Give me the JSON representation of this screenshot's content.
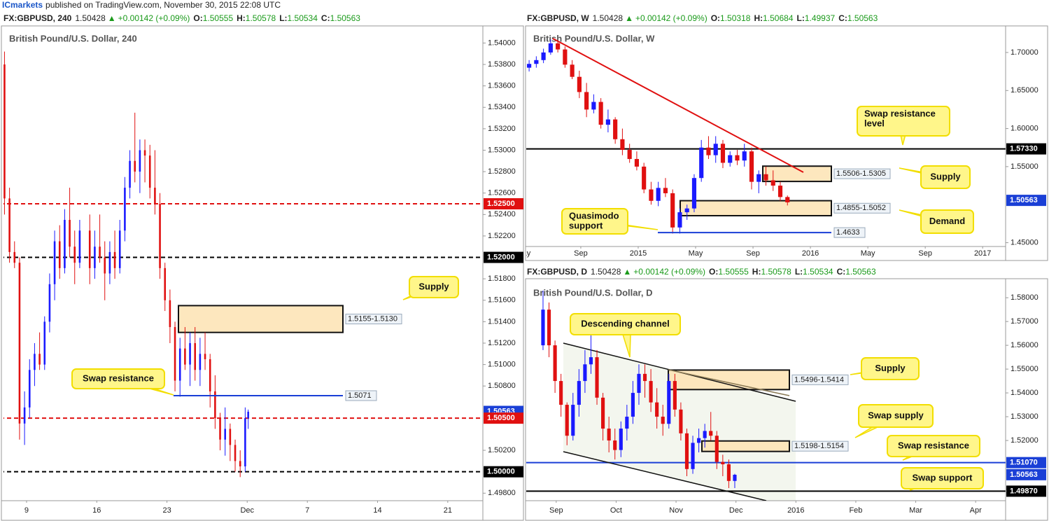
{
  "header": {
    "author": "ICmarkets",
    "text": "published on TradingView.com, November 30, 2015 22:08 UTC"
  },
  "chart_data": [
    {
      "type": "candlestick",
      "title": "British Pound/U.S. Dollar, 240",
      "quote": {
        "symbol": "FX:GBPUSD, 240",
        "last": "1.50428",
        "arrow": "▲",
        "change": "+0.00142 (+0.09%)",
        "ohlc": [
          {
            "label": "O:",
            "value": "1.50555"
          },
          {
            "label": "H:",
            "value": "1.50578"
          },
          {
            "label": "L:",
            "value": "1.50534"
          },
          {
            "label": "C:",
            "value": "1.50563"
          }
        ]
      },
      "up_color": "#1a1aff",
      "down_color": "#e01010",
      "grid": false,
      "xlim": [
        6.7,
        54.5
      ],
      "xticks": [
        9,
        16,
        23,
        {
          "value": 31,
          "label": "Dec"
        },
        {
          "value": 37,
          "label": "7"
        },
        {
          "value": 44,
          "label": "14"
        },
        {
          "value": 51,
          "label": "21"
        }
      ],
      "ylim": [
        1.4973,
        1.5414
      ],
      "yticks": [
        {
          "value": 1.54,
          "label": "1.54000"
        },
        {
          "value": 1.538,
          "label": "1.53800"
        },
        {
          "value": 1.536,
          "label": "1.53600"
        },
        {
          "value": 1.534,
          "label": "1.53400"
        },
        {
          "value": 1.532,
          "label": "1.53200"
        },
        {
          "value": 1.53,
          "label": "1.53000"
        },
        {
          "value": 1.528,
          "label": "1.52800"
        },
        {
          "value": 1.526,
          "label": "1.52600"
        },
        {
          "value": 1.524,
          "label": "1.52400"
        },
        {
          "value": 1.522,
          "label": "1.52200"
        },
        {
          "value": 1.518,
          "label": "1.51800"
        },
        {
          "value": 1.516,
          "label": "1.51600"
        },
        {
          "value": 1.514,
          "label": "1.51400"
        },
        {
          "value": 1.512,
          "label": "1.51200"
        },
        {
          "value": 1.51,
          "label": "1.51000"
        },
        {
          "value": 1.508,
          "label": "1.50800"
        },
        {
          "value": 1.502,
          "label": "1.50200"
        },
        {
          "value": 1.498,
          "label": "1.49800"
        }
      ],
      "levels": [
        {
          "value": 1.525,
          "label": "1.52500",
          "color": "#e01010",
          "line": "dashed"
        },
        {
          "value": 1.52,
          "label": "1.52000",
          "color": "#000000",
          "line": "dashed"
        },
        {
          "value": 1.50563,
          "label": "1.50563",
          "color": "#1a3fd6",
          "line": "none"
        },
        {
          "value": 1.505,
          "label": "1.50500",
          "color": "#e01010",
          "line": "dashed"
        },
        {
          "value": 1.5,
          "label": "1.50000",
          "color": "#000000",
          "line": "dashed"
        }
      ],
      "zones": [
        {
          "top": 1.5155,
          "bottom": 1.513,
          "label": "1.5155-1.5130"
        }
      ],
      "lines": [
        {
          "value": 1.5071,
          "label": "1.5071",
          "color": "#1a3fd6"
        }
      ],
      "callouts": [
        "Supply",
        "Swap resistance"
      ],
      "x": [
        6.8,
        7.3,
        7.8,
        8.3,
        8.8,
        9.3,
        9.8,
        10.3,
        10.8,
        11.3,
        11.8,
        12.3,
        12.8,
        13.3,
        13.8,
        14.3,
        15.3,
        15.8,
        16.3,
        16.8,
        17.3,
        17.8,
        18.3,
        18.8,
        19.3,
        19.8,
        20.3,
        20.8,
        21.3,
        21.8,
        22.3,
        22.8,
        23.3,
        23.8,
        24.3,
        24.8,
        25.3,
        25.8,
        26.3,
        26.8,
        27.3,
        27.8,
        28.3,
        28.8,
        29.3,
        29.8,
        30.3,
        30.8,
        31.1
      ],
      "open": [
        1.538,
        1.5255,
        1.5205,
        1.5195,
        1.5045,
        1.506,
        1.5095,
        1.511,
        1.51,
        1.514,
        1.5175,
        1.5215,
        1.519,
        1.5235,
        1.521,
        1.5195,
        1.5225,
        1.519,
        1.521,
        1.52,
        1.5185,
        1.5205,
        1.519,
        1.5225,
        1.5265,
        1.529,
        1.528,
        1.53,
        1.5295,
        1.5265,
        1.525,
        1.519,
        1.516,
        1.5135,
        1.5085,
        1.5115,
        1.51,
        1.512,
        1.5095,
        1.511,
        1.5105,
        1.5075,
        1.505,
        1.503,
        1.504,
        1.5025,
        1.501,
        1.5005,
        1.505
      ],
      "high": [
        1.5392,
        1.5265,
        1.5215,
        1.52,
        1.5075,
        1.5105,
        1.512,
        1.513,
        1.5145,
        1.5185,
        1.5225,
        1.523,
        1.5245,
        1.5265,
        1.5225,
        1.5235,
        1.524,
        1.5225,
        1.524,
        1.5215,
        1.5215,
        1.5225,
        1.5235,
        1.5275,
        1.53,
        1.5335,
        1.531,
        1.531,
        1.5305,
        1.53,
        1.526,
        1.5195,
        1.517,
        1.514,
        1.5125,
        1.5135,
        1.513,
        1.5135,
        1.5125,
        1.513,
        1.511,
        1.509,
        1.5055,
        1.506,
        1.5045,
        1.503,
        1.502,
        1.506,
        1.5058
      ],
      "low": [
        1.524,
        1.5195,
        1.519,
        1.503,
        1.5025,
        1.505,
        1.508,
        1.5095,
        1.5095,
        1.513,
        1.516,
        1.518,
        1.5185,
        1.52,
        1.5175,
        1.519,
        1.5175,
        1.518,
        1.5195,
        1.516,
        1.5175,
        1.518,
        1.5185,
        1.5215,
        1.5255,
        1.527,
        1.526,
        1.527,
        1.5255,
        1.524,
        1.518,
        1.515,
        1.512,
        1.5075,
        1.507,
        1.5095,
        1.508,
        1.5085,
        1.508,
        1.5095,
        1.506,
        1.504,
        1.502,
        1.5015,
        1.501,
        1.5,
        1.4995,
        1.5,
        1.504
      ],
      "close": [
        1.5255,
        1.5205,
        1.5195,
        1.5045,
        1.506,
        1.5095,
        1.511,
        1.51,
        1.514,
        1.5175,
        1.5215,
        1.519,
        1.5235,
        1.521,
        1.5195,
        1.5225,
        1.519,
        1.521,
        1.52,
        1.5185,
        1.5205,
        1.519,
        1.5225,
        1.5265,
        1.529,
        1.528,
        1.53,
        1.5295,
        1.5265,
        1.525,
        1.519,
        1.516,
        1.5135,
        1.5085,
        1.5115,
        1.51,
        1.512,
        1.5095,
        1.511,
        1.5105,
        1.5075,
        1.505,
        1.503,
        1.504,
        1.5025,
        1.501,
        1.5005,
        1.505,
        1.5056
      ]
    },
    {
      "type": "candlestick",
      "title": "British Pound/U.S. Dollar, W",
      "quote": {
        "symbol": "FX:GBPUSD, W",
        "last": "1.50428",
        "arrow": "▲",
        "change": "+0.00142 (+0.09%)",
        "ohlc": [
          {
            "label": "O:",
            "value": "1.50318"
          },
          {
            "label": "H:",
            "value": "1.50684"
          },
          {
            "label": "L:",
            "value": "1.49937"
          },
          {
            "label": "C:",
            "value": "1.50563"
          }
        ]
      },
      "up_color": "#1a1aff",
      "down_color": "#e01010",
      "grid": false,
      "xlim": [
        4.2,
        37.6
      ],
      "xticks": [
        {
          "value": 4,
          "label": "May"
        },
        {
          "value": 8,
          "label": "Sep"
        },
        {
          "value": 12,
          "label": "2015"
        },
        {
          "value": 16,
          "label": "May"
        },
        {
          "value": 20,
          "label": "Sep"
        },
        {
          "value": 24,
          "label": "2016"
        },
        {
          "value": 28,
          "label": "May"
        },
        {
          "value": 32,
          "label": "Sep"
        },
        {
          "value": 36,
          "label": "2017"
        }
      ],
      "ylim": [
        1.445,
        1.734
      ],
      "yticks": [
        {
          "value": 1.7,
          "label": "1.70000"
        },
        {
          "value": 1.65,
          "label": "1.65000"
        },
        {
          "value": 1.6,
          "label": "1.60000"
        },
        {
          "value": 1.55,
          "label": "1.55000"
        },
        {
          "value": 1.45,
          "label": "1.45000"
        }
      ],
      "levels": [
        {
          "value": 1.5733,
          "label": "1.57330",
          "color": "#000000",
          "line": "solid"
        },
        {
          "value": 1.50563,
          "label": "1.50563",
          "color": "#1a3fd6",
          "line": "none"
        }
      ],
      "zones": [
        {
          "top": 1.5506,
          "bottom": 1.5305,
          "label": "1.5506-1.5305"
        },
        {
          "top": 1.5052,
          "bottom": 1.4855,
          "label": "1.4855-1.5052"
        }
      ],
      "lines": [
        {
          "value": 1.4633,
          "label": "1.4633",
          "color": "#1a3fd6"
        }
      ],
      "callouts": [
        [
          "Swap resistance",
          "level"
        ],
        "Supply",
        "Demand",
        [
          "Quasimodo",
          "support"
        ]
      ],
      "x": [
        4.4,
        4.9,
        5.4,
        5.9,
        6.4,
        6.9,
        7.4,
        7.9,
        8.4,
        8.9,
        9.4,
        9.9,
        10.4,
        10.9,
        11.4,
        11.9,
        12.4,
        12.9,
        13.4,
        13.9,
        14.4,
        14.9,
        15.4,
        15.9,
        16.4,
        16.9,
        17.4,
        17.9,
        18.4,
        18.9,
        19.4,
        19.9,
        20.4,
        20.9,
        21.4,
        21.9,
        22.4
      ],
      "open": [
        1.68,
        1.685,
        1.69,
        1.7,
        1.712,
        1.704,
        1.684,
        1.668,
        1.648,
        1.625,
        1.635,
        1.605,
        1.612,
        1.586,
        1.572,
        1.56,
        1.55,
        1.52,
        1.505,
        1.522,
        1.515,
        1.47,
        1.49,
        1.495,
        1.535,
        1.575,
        1.565,
        1.58,
        1.555,
        1.565,
        1.558,
        1.57,
        1.53,
        1.54,
        1.532,
        1.525,
        1.51
      ],
      "high": [
        1.69,
        1.695,
        1.705,
        1.717,
        1.716,
        1.708,
        1.69,
        1.676,
        1.66,
        1.645,
        1.64,
        1.625,
        1.615,
        1.6,
        1.58,
        1.57,
        1.555,
        1.53,
        1.53,
        1.535,
        1.52,
        1.495,
        1.5,
        1.54,
        1.585,
        1.59,
        1.59,
        1.585,
        1.57,
        1.572,
        1.58,
        1.575,
        1.545,
        1.55,
        1.545,
        1.53,
        1.512
      ],
      "low": [
        1.675,
        1.68,
        1.686,
        1.697,
        1.7,
        1.68,
        1.665,
        1.64,
        1.615,
        1.62,
        1.6,
        1.595,
        1.58,
        1.565,
        1.555,
        1.545,
        1.515,
        1.5,
        1.498,
        1.51,
        1.462,
        1.462,
        1.48,
        1.49,
        1.53,
        1.56,
        1.555,
        1.548,
        1.55,
        1.552,
        1.55,
        1.52,
        1.515,
        1.525,
        1.518,
        1.505,
        1.499
      ],
      "close": [
        1.685,
        1.69,
        1.7,
        1.712,
        1.704,
        1.684,
        1.668,
        1.648,
        1.625,
        1.635,
        1.605,
        1.612,
        1.586,
        1.572,
        1.56,
        1.55,
        1.52,
        1.505,
        1.522,
        1.515,
        1.47,
        1.49,
        1.495,
        1.535,
        1.575,
        1.565,
        1.58,
        1.555,
        1.565,
        1.558,
        1.57,
        1.53,
        1.54,
        1.532,
        1.525,
        1.51,
        1.503
      ]
    },
    {
      "type": "candlestick",
      "title": "British Pound/U.S. Dollar, D",
      "quote": {
        "symbol": "FX:GBPUSD, D",
        "last": "1.50428",
        "arrow": "▲",
        "change": "+0.00142 (+0.09%)",
        "ohlc": [
          {
            "label": "O:",
            "value": "1.50555"
          },
          {
            "label": "H:",
            "value": "1.50578"
          },
          {
            "label": "L:",
            "value": "1.50534"
          },
          {
            "label": "C:",
            "value": "1.50563"
          }
        ]
      },
      "up_color": "#1a1aff",
      "down_color": "#e01010",
      "grid": false,
      "xlim": [
        7.5,
        15.5
      ],
      "xticks": [
        {
          "value": 8,
          "label": "Sep"
        },
        {
          "value": 9,
          "label": "Oct"
        },
        {
          "value": 10,
          "label": "Nov"
        },
        {
          "value": 11,
          "label": "Dec"
        },
        {
          "value": 12,
          "label": "2016"
        },
        {
          "value": 13,
          "label": "Feb"
        },
        {
          "value": 14,
          "label": "Mar"
        },
        {
          "value": 15,
          "label": "Apr"
        }
      ],
      "ylim": [
        1.4947,
        1.5874
      ],
      "yticks": [
        {
          "value": 1.58,
          "label": "1.58000"
        },
        {
          "value": 1.57,
          "label": "1.57000"
        },
        {
          "value": 1.56,
          "label": "1.56000"
        },
        {
          "value": 1.55,
          "label": "1.55000"
        },
        {
          "value": 1.54,
          "label": "1.54000"
        },
        {
          "value": 1.53,
          "label": "1.53000"
        },
        {
          "value": 1.52,
          "label": "1.52000"
        }
      ],
      "levels": [
        {
          "value": 1.5107,
          "label": "1.51070",
          "color": "#1a3fd6",
          "line": "solid"
        },
        {
          "value": 1.50563,
          "label": "1.50563",
          "color": "#1a3fd6",
          "line": "none"
        },
        {
          "value": 1.4987,
          "label": "1.49870",
          "color": "#000000",
          "line": "solid"
        }
      ],
      "zones": [
        {
          "top": 1.5496,
          "bottom": 1.5414,
          "label": "1.5496-1.5414"
        },
        {
          "top": 1.5198,
          "bottom": 1.5154,
          "label": "1.5198-1.5154"
        }
      ],
      "lines": [],
      "callouts": [
        "Descending channel",
        "Supply",
        "Swap supply",
        "Swap resistance",
        "Swap support"
      ],
      "x": [
        7.78,
        7.88,
        7.98,
        8.08,
        8.18,
        8.28,
        8.38,
        8.48,
        8.58,
        8.68,
        8.78,
        8.88,
        8.98,
        9.08,
        9.18,
        9.28,
        9.38,
        9.48,
        9.58,
        9.68,
        9.78,
        9.88,
        9.98,
        10.08,
        10.18,
        10.28,
        10.38,
        10.48,
        10.58,
        10.68,
        10.78,
        10.88,
        10.98
      ],
      "open": [
        1.56,
        1.575,
        1.56,
        1.545,
        1.535,
        1.522,
        1.535,
        1.545,
        1.552,
        1.555,
        1.538,
        1.525,
        1.52,
        1.516,
        1.525,
        1.53,
        1.54,
        1.548,
        1.545,
        1.536,
        1.53,
        1.527,
        1.545,
        1.533,
        1.523,
        1.508,
        1.519,
        1.521,
        1.524,
        1.522,
        1.511,
        1.51,
        1.503
      ],
      "high": [
        1.583,
        1.578,
        1.562,
        1.548,
        1.536,
        1.54,
        1.55,
        1.558,
        1.565,
        1.558,
        1.54,
        1.53,
        1.525,
        1.528,
        1.535,
        1.545,
        1.552,
        1.552,
        1.55,
        1.542,
        1.535,
        1.548,
        1.548,
        1.536,
        1.525,
        1.522,
        1.525,
        1.527,
        1.532,
        1.524,
        1.514,
        1.512,
        1.506
      ],
      "low": [
        1.558,
        1.555,
        1.54,
        1.53,
        1.518,
        1.52,
        1.53,
        1.54,
        1.548,
        1.535,
        1.52,
        1.515,
        1.512,
        1.513,
        1.52,
        1.527,
        1.535,
        1.538,
        1.532,
        1.525,
        1.522,
        1.525,
        1.53,
        1.52,
        1.505,
        1.506,
        1.515,
        1.517,
        1.52,
        1.508,
        1.505,
        1.5,
        1.5
      ],
      "close": [
        1.575,
        1.56,
        1.545,
        1.535,
        1.522,
        1.535,
        1.545,
        1.552,
        1.555,
        1.538,
        1.525,
        1.52,
        1.516,
        1.525,
        1.53,
        1.54,
        1.548,
        1.545,
        1.536,
        1.53,
        1.527,
        1.545,
        1.533,
        1.523,
        1.508,
        1.519,
        1.521,
        1.524,
        1.522,
        1.511,
        1.51,
        1.503,
        1.5056
      ]
    }
  ]
}
